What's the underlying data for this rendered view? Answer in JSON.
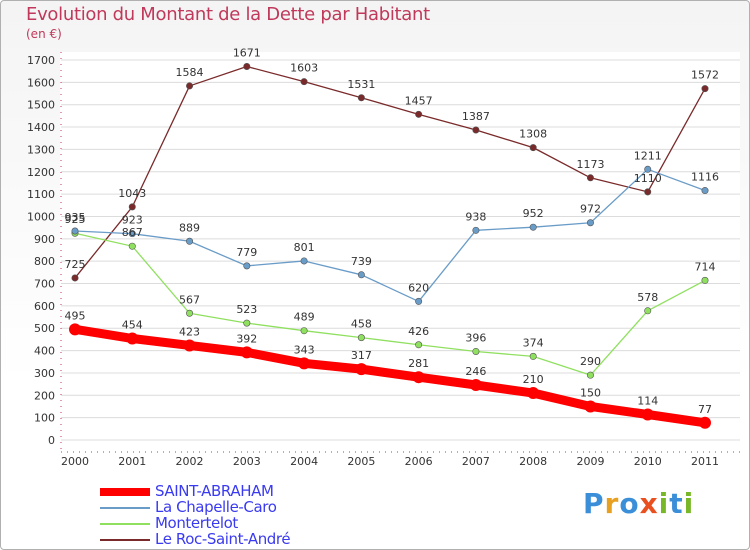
{
  "header": {
    "title": "Evolution du Montant de la Dette par Habitant",
    "unit": "(en €)"
  },
  "logo": {
    "text": "Proxiti",
    "letters": [
      "P",
      "r",
      "o",
      "x",
      "i",
      "t",
      "i"
    ],
    "colors": [
      "#3a8fd8",
      "#e8a020",
      "#3a8fd8",
      "#e85020",
      "#78b828",
      "#3a8fd8",
      "#78b828"
    ]
  },
  "chart_data": {
    "type": "line",
    "title": "Evolution du Montant de la Dette par Habitant",
    "ylabel": "(en €)",
    "xlabel": "",
    "ylim": [
      0,
      1700
    ],
    "grid": true,
    "legend_position": "bottom-left",
    "x": [
      "2000",
      "2001",
      "2002",
      "2003",
      "2004",
      "2005",
      "2006",
      "2007",
      "2008",
      "2009",
      "2010",
      "2011"
    ],
    "y_ticks": [
      "0",
      "100",
      "200",
      "300",
      "400",
      "500",
      "600",
      "700",
      "800",
      "900",
      "1000",
      "1100",
      "1200",
      "1300",
      "1400",
      "1500",
      "1600",
      "1700"
    ],
    "series": [
      {
        "name": "SAINT-ABRAHAM",
        "color": "#ff0000",
        "values": [
          495,
          454,
          423,
          392,
          343,
          317,
          281,
          246,
          210,
          150,
          114,
          77
        ]
      },
      {
        "name": "La Chapelle-Caro",
        "color": "#6a9cc8",
        "values": [
          935,
          923,
          889,
          779,
          801,
          739,
          620,
          938,
          952,
          972,
          1211,
          1116
        ]
      },
      {
        "name": "Montertelot",
        "color": "#90e060",
        "values": [
          925,
          867,
          567,
          523,
          489,
          458,
          426,
          396,
          374,
          290,
          578,
          714
        ]
      },
      {
        "name": "Le Roc-Saint-André",
        "color": "#7a2a2a",
        "values": [
          725,
          1043,
          1584,
          1671,
          1603,
          1531,
          1457,
          1387,
          1308,
          1173,
          1110,
          1572
        ]
      }
    ]
  }
}
